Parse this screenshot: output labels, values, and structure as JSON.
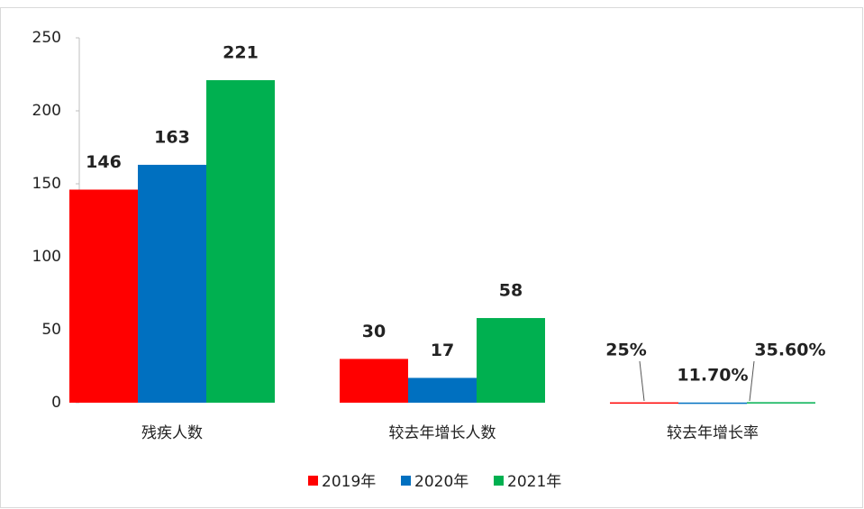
{
  "chart_data": {
    "type": "bar",
    "categories": [
      "残疾人数",
      "较去年增长人数",
      "较去年增长率"
    ],
    "series": [
      {
        "name": "2019年",
        "color": "#ff0000",
        "values": [
          146,
          30,
          0.25
        ],
        "value_labels": [
          "146",
          "30",
          "25%"
        ]
      },
      {
        "name": "2020年",
        "color": "#0070c0",
        "values": [
          163,
          17,
          0.117
        ],
        "value_labels": [
          "163",
          "17",
          "11.70%"
        ]
      },
      {
        "name": "2021年",
        "color": "#00b050",
        "values": [
          221,
          58,
          0.356
        ],
        "value_labels": [
          "221",
          "58",
          "35.60%"
        ]
      }
    ],
    "ylim": [
      0,
      250
    ],
    "yticks": [
      0,
      50,
      100,
      150,
      200,
      250
    ],
    "grid": false,
    "legend": "bottom"
  }
}
